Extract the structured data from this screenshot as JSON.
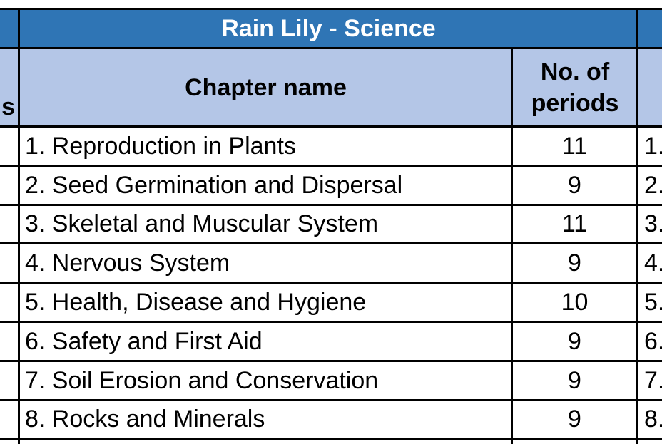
{
  "title": "Rain Lily - Science",
  "headers": {
    "left_partial": "s",
    "chapter_name": "Chapter name",
    "periods_line1": "No. of",
    "periods_line2": "periods"
  },
  "rows": [
    {
      "chapter": "1. Reproduction in Plants",
      "periods": "11",
      "next": "1."
    },
    {
      "chapter": "2. Seed Germination and Dispersal",
      "periods": "9",
      "next": "2."
    },
    {
      "chapter": "3. Skeletal and Muscular System",
      "periods": "11",
      "next": "3."
    },
    {
      "chapter": "4. Nervous System",
      "periods": "9",
      "next": "4."
    },
    {
      "chapter": "5. Health, Disease and Hygiene",
      "periods": "10",
      "next": "5."
    },
    {
      "chapter": "6. Safety and First Aid",
      "periods": "9",
      "next": "6."
    },
    {
      "chapter": "7. Soil Erosion and Conservation",
      "periods": "9",
      "next": "7."
    },
    {
      "chapter": "8. Rocks and Minerals",
      "periods": "9",
      "next": "8."
    }
  ],
  "colors": {
    "title_fill": "#2f75b5",
    "header_fill": "#b4c6e7",
    "border": "#000000"
  }
}
